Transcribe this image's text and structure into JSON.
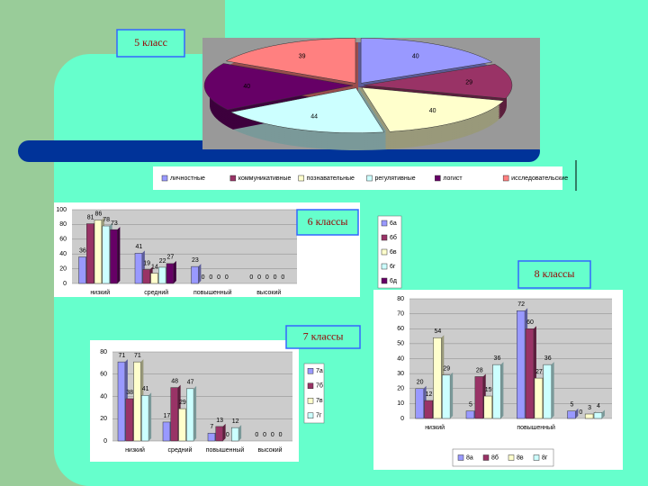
{
  "chart_data": [
    {
      "type": "pie",
      "title": "5 класс",
      "categories": [
        "личностные",
        "коммуникативные",
        "познавательные",
        "регулятивные",
        "логист",
        "исследовательские"
      ],
      "values": [
        40,
        29,
        40,
        44,
        40,
        39
      ],
      "colors": [
        "#9999ff",
        "#993366",
        "#ffffcc",
        "#ccffff",
        "#660066",
        "#ff8080"
      ]
    },
    {
      "type": "bar",
      "title": "6 классы",
      "categories": [
        "низкий",
        "средний",
        "повышенный",
        "высокий"
      ],
      "series": [
        {
          "name": "6а",
          "color": "#9999ff",
          "values": [
            36,
            41,
            23,
            0
          ]
        },
        {
          "name": "6б",
          "color": "#993366",
          "values": [
            81,
            19,
            0,
            0
          ]
        },
        {
          "name": "6в",
          "color": "#ffffcc",
          "values": [
            86,
            14,
            0,
            0
          ]
        },
        {
          "name": "6г",
          "color": "#ccffff",
          "values": [
            78,
            22,
            0,
            0
          ]
        },
        {
          "name": "6д",
          "color": "#660066",
          "values": [
            73,
            27,
            0,
            0
          ]
        }
      ],
      "ylim": [
        0,
        100
      ],
      "yticks": [
        0,
        20,
        40,
        60,
        80,
        100
      ]
    },
    {
      "type": "bar",
      "title": "7 классы",
      "categories": [
        "низкий",
        "средний",
        "повышенный",
        "высокий"
      ],
      "series": [
        {
          "name": "7а",
          "color": "#9999ff",
          "values": [
            71,
            17,
            7,
            0
          ]
        },
        {
          "name": "7б",
          "color": "#993366",
          "values": [
            38,
            48,
            13,
            0
          ]
        },
        {
          "name": "7в",
          "color": "#ffffcc",
          "values": [
            71,
            29,
            0,
            0
          ]
        },
        {
          "name": "7г",
          "color": "#ccffff",
          "values": [
            41,
            47,
            12,
            0
          ]
        }
      ],
      "ylim": [
        0,
        80
      ],
      "yticks": [
        0,
        20,
        40,
        60,
        80
      ]
    },
    {
      "type": "bar",
      "title": "8 классы",
      "categories": [
        "низкий",
        null,
        "повышенный",
        null
      ],
      "series": [
        {
          "name": "8а",
          "color": "#9999ff",
          "values": [
            20,
            5,
            72,
            5
          ]
        },
        {
          "name": "8б",
          "color": "#993366",
          "values": [
            12,
            28,
            60,
            0
          ]
        },
        {
          "name": "8в",
          "color": "#ffffcc",
          "values": [
            54,
            15,
            27,
            3
          ]
        },
        {
          "name": "8г",
          "color": "#ccffff",
          "values": [
            29,
            36,
            36,
            4
          ]
        }
      ],
      "ylim": [
        0,
        80
      ],
      "yticks": [
        0,
        10,
        20,
        30,
        40,
        50,
        60,
        70,
        80
      ]
    }
  ]
}
